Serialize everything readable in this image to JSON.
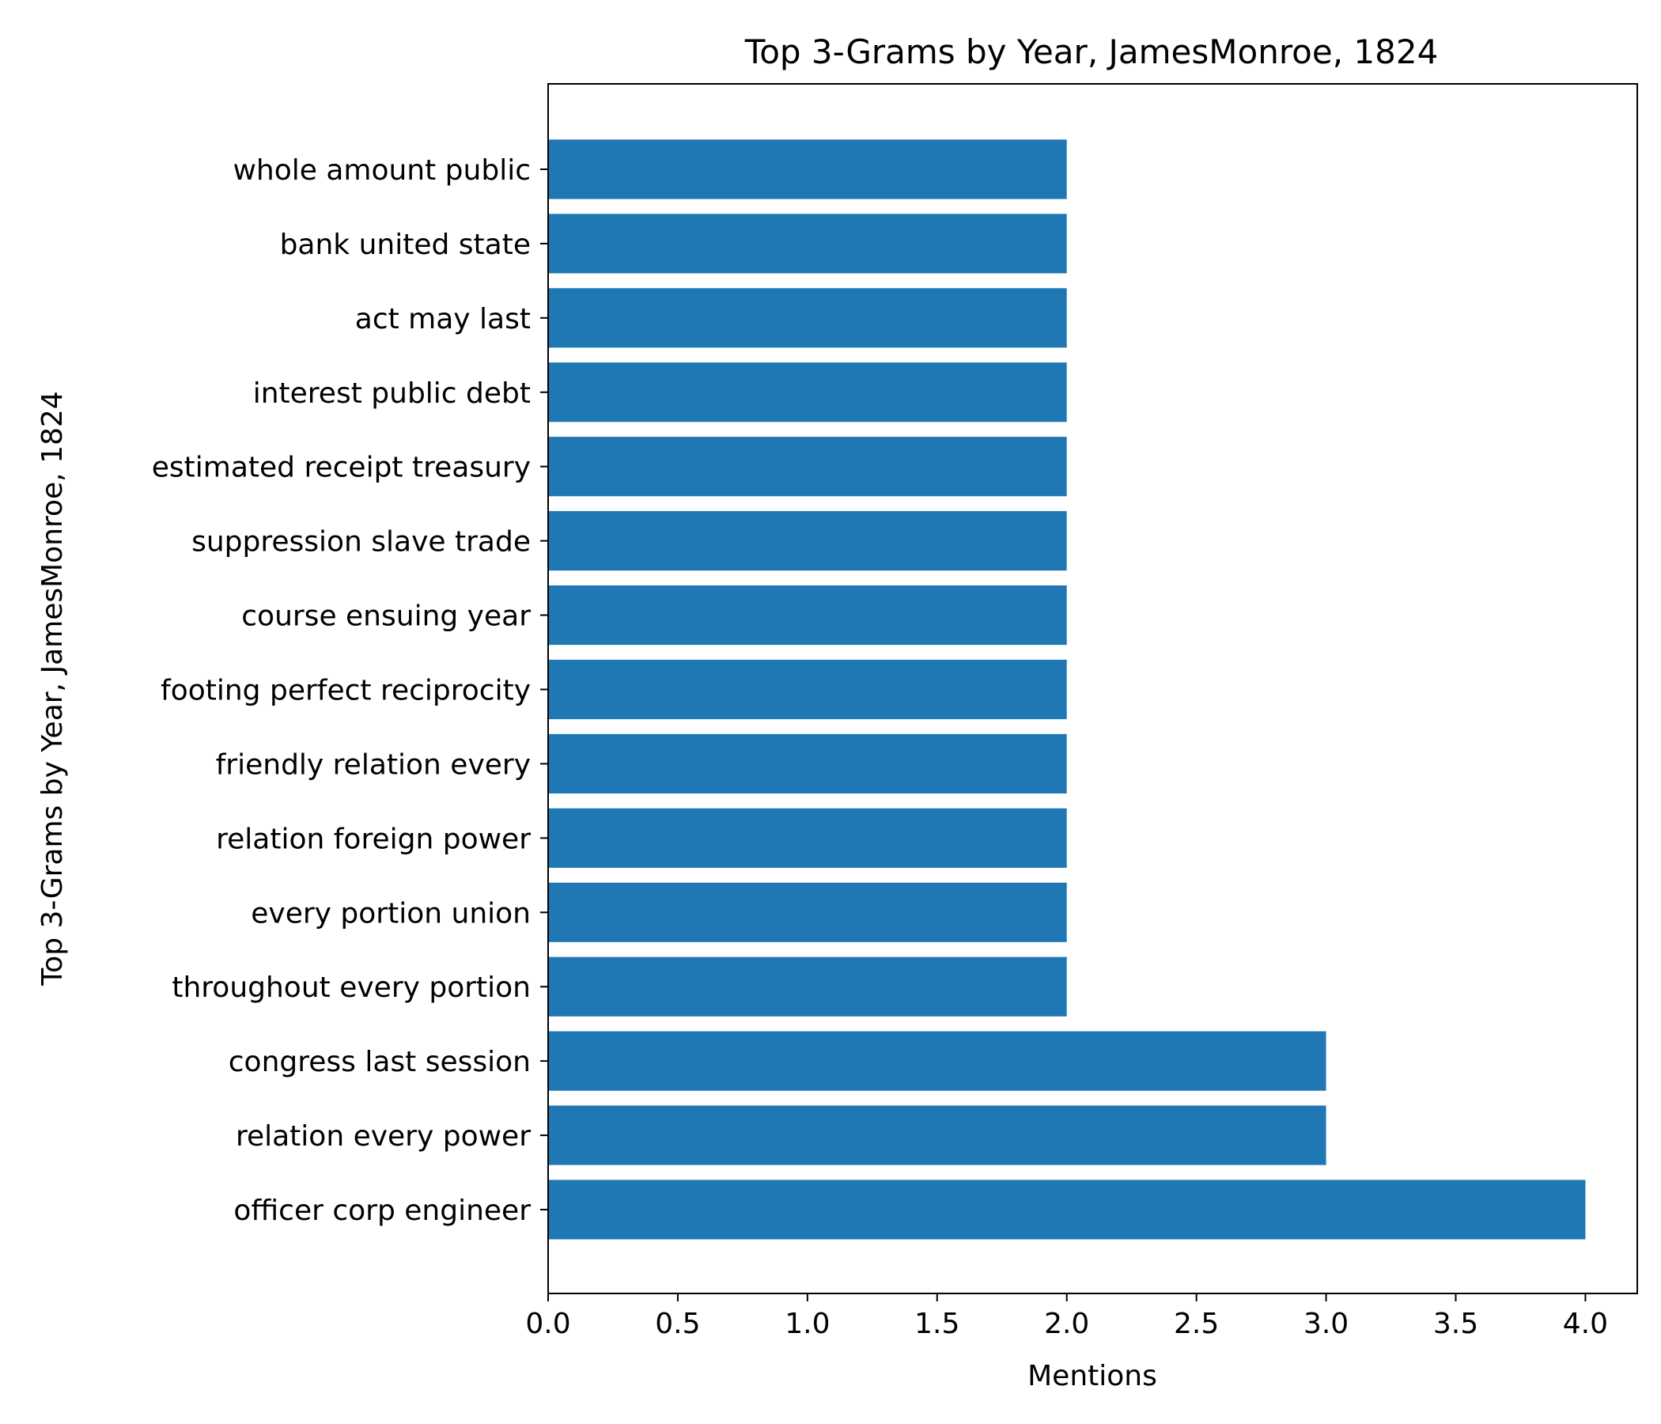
{
  "chart_data": {
    "type": "bar",
    "orientation": "horizontal",
    "title": "Top 3-Grams by Year, JamesMonroe, 1824",
    "xlabel": "Mentions",
    "ylabel": "Top 3-Grams by Year, JamesMonroe, 1824",
    "categories": [
      "officer corp engineer",
      "relation every power",
      "congress last session",
      "throughout every portion",
      "every portion union",
      "relation foreign power",
      "friendly relation every",
      "footing perfect reciprocity",
      "course ensuing year",
      "suppression slave trade",
      "estimated receipt treasury",
      "interest public debt",
      "act may last",
      "bank united state",
      "whole amount public"
    ],
    "values": [
      4,
      3,
      3,
      2,
      2,
      2,
      2,
      2,
      2,
      2,
      2,
      2,
      2,
      2,
      2
    ],
    "xlim": [
      0,
      4.2
    ],
    "xticks": [
      "0.0",
      "0.5",
      "1.0",
      "1.5",
      "2.0",
      "2.5",
      "3.0",
      "3.5",
      "4.0"
    ],
    "grid": false,
    "legend": "none",
    "bar_color": "#1f77b4"
  }
}
